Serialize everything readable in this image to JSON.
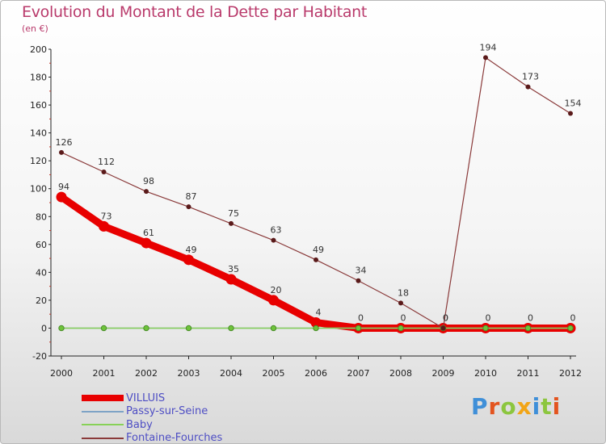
{
  "header": {
    "title": "Evolution du Montant de la Dette par Habitant",
    "subtitle": "(en €)"
  },
  "brand": {
    "name": "Proxiti"
  },
  "chart_data": {
    "type": "line",
    "title": "Evolution du Montant de la Dette par Habitant",
    "ylabel": "(en €)",
    "xlabel": "",
    "ylim": [
      -20,
      200
    ],
    "yticks": [
      -20,
      0,
      20,
      40,
      60,
      80,
      100,
      120,
      140,
      160,
      180,
      200
    ],
    "grid": false,
    "legend_position": "bottom-left",
    "categories": [
      "2000",
      "2001",
      "2002",
      "2003",
      "2004",
      "2005",
      "2006",
      "2007",
      "2008",
      "2009",
      "2010",
      "2011",
      "2012"
    ],
    "series": [
      {
        "name": "VILLUIS",
        "color": "#e80000",
        "values": [
          94,
          73,
          61,
          49,
          35,
          20,
          4,
          0,
          0,
          0,
          0,
          0,
          0
        ]
      },
      {
        "name": "Passy-sur-Seine",
        "color": "#7ea3c6",
        "values": [
          0,
          0,
          0,
          0,
          0,
          0,
          0,
          0,
          0,
          0,
          0,
          0,
          0
        ]
      },
      {
        "name": "Baby",
        "color": "#88d158",
        "values": [
          0,
          0,
          0,
          0,
          0,
          0,
          0,
          0,
          0,
          0,
          0,
          0,
          0
        ]
      },
      {
        "name": "Fontaine-Fourches",
        "color": "#8a3a3a",
        "values": [
          126,
          112,
          98,
          87,
          75,
          63,
          49,
          34,
          18,
          0,
          194,
          173,
          154
        ]
      }
    ]
  }
}
